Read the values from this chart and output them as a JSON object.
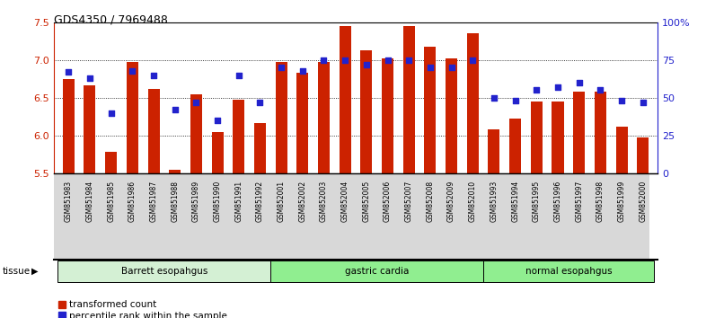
{
  "title": "GDS4350 / 7969488",
  "samples": [
    "GSM851983",
    "GSM851984",
    "GSM851985",
    "GSM851986",
    "GSM851987",
    "GSM851988",
    "GSM851989",
    "GSM851990",
    "GSM851991",
    "GSM851992",
    "GSM852001",
    "GSM852002",
    "GSM852003",
    "GSM852004",
    "GSM852005",
    "GSM852006",
    "GSM852007",
    "GSM852008",
    "GSM852009",
    "GSM852010",
    "GSM851993",
    "GSM851994",
    "GSM851995",
    "GSM851996",
    "GSM851997",
    "GSM851998",
    "GSM851999",
    "GSM852000"
  ],
  "red_values": [
    6.75,
    6.67,
    5.78,
    6.97,
    6.62,
    5.55,
    6.55,
    6.05,
    6.48,
    6.17,
    6.97,
    6.83,
    6.97,
    7.45,
    7.13,
    7.02,
    7.45,
    7.18,
    7.02,
    7.35,
    6.08,
    6.22,
    6.45,
    6.45,
    6.58,
    6.58,
    6.12,
    5.97
  ],
  "blue_percentiles": [
    67,
    63,
    40,
    68,
    65,
    42,
    47,
    35,
    65,
    47,
    70,
    68,
    75,
    75,
    72,
    75,
    75,
    70,
    70,
    75,
    50,
    48,
    55,
    57,
    60,
    55,
    48,
    47
  ],
  "ylim_left": [
    5.5,
    7.5
  ],
  "ylim_right": [
    0,
    100
  ],
  "yticks_left": [
    5.5,
    6.0,
    6.5,
    7.0,
    7.5
  ],
  "yticks_right": [
    0,
    25,
    50,
    75,
    100
  ],
  "ytick_labels_right": [
    "0",
    "25",
    "50",
    "75",
    "100%"
  ],
  "bar_color": "#cc2200",
  "dot_color": "#2222cc",
  "bar_width": 0.55,
  "bar_bottom": 5.5,
  "legend_red": "transformed count",
  "legend_blue": "percentile rank within the sample",
  "tissue_label": "tissue",
  "background_color": "#ffffff",
  "group_defs": [
    {
      "label": "Barrett esopahgus",
      "start": 0,
      "end": 10,
      "color": "#d4f0d4"
    },
    {
      "label": "gastric cardia",
      "start": 10,
      "end": 20,
      "color": "#90ee90"
    },
    {
      "label": "normal esopahgus",
      "start": 20,
      "end": 28,
      "color": "#90ee90"
    }
  ],
  "xticklabel_bg": "#d8d8d8",
  "grid_ticks": [
    6.0,
    6.5,
    7.0
  ]
}
